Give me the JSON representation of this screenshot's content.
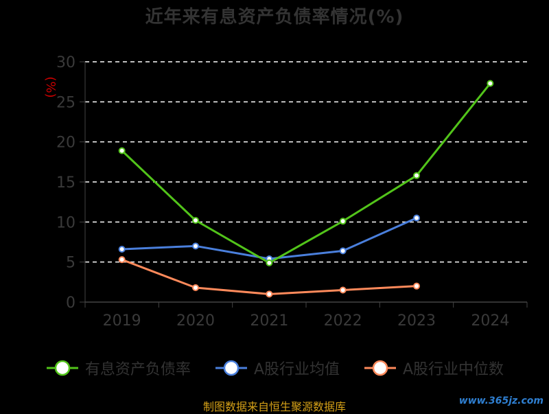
{
  "chart_data": {
    "type": "line",
    "title": "近年来有息资产负债率情况(%)",
    "ylabel": "(%)",
    "xlabel": "",
    "categories": [
      "2019",
      "2020",
      "2021",
      "2022",
      "2023",
      "2024"
    ],
    "ylim": [
      0,
      30
    ],
    "yticks": [
      0,
      5,
      10,
      15,
      20,
      25,
      30
    ],
    "grid": "horizontal-dashed",
    "legend_position": "bottom",
    "series": [
      {
        "name": "有息资产负债率",
        "color": "#52c41a",
        "values": [
          18.9,
          10.2,
          4.9,
          10.1,
          15.8,
          27.3
        ]
      },
      {
        "name": "A股行业均值",
        "color": "#4a7fdc",
        "values": [
          6.6,
          7.0,
          5.4,
          6.4,
          10.5,
          null
        ]
      },
      {
        "name": "A股行业中位数",
        "color": "#ff8a5b",
        "values": [
          5.3,
          1.8,
          1.0,
          1.5,
          2.0,
          null
        ]
      }
    ]
  },
  "footer": {
    "source": "制图数据来自恒生聚源数据库",
    "watermark": "www.365jz.com"
  }
}
